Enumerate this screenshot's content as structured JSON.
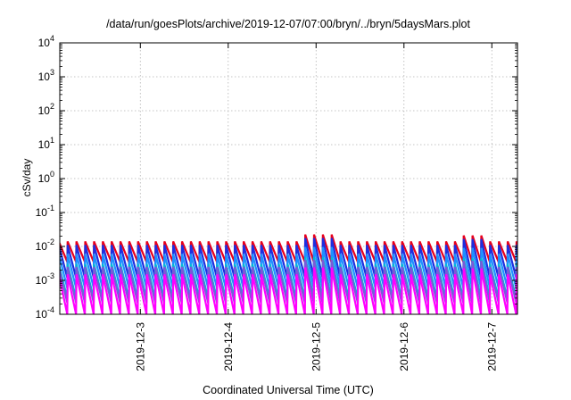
{
  "chart_data": {
    "type": "line",
    "title": "/data/run/goesPlots/archive/2019-12-07/07:00/bryn/../bryn/5daysMars.plot",
    "xlabel": "Coordinated Universal Time (UTC)",
    "ylabel": "cSv/day",
    "x_scale": "time",
    "y_scale": "log",
    "xlim": [
      "2019-12-02T02:00",
      "2019-12-07T07:00"
    ],
    "ylim": [
      0.0001,
      10000
    ],
    "x_ticks": [
      "2019-12-3",
      "2019-12-4",
      "2019-12-5",
      "2019-12-6",
      "2019-12-7"
    ],
    "y_ticks": [
      {
        "mantissa": "10",
        "exp": "-4"
      },
      {
        "mantissa": "10",
        "exp": "-3"
      },
      {
        "mantissa": "10",
        "exp": "-2"
      },
      {
        "mantissa": "10",
        "exp": "-1"
      },
      {
        "mantissa": "10",
        "exp": "0"
      },
      {
        "mantissa": "10",
        "exp": "1"
      },
      {
        "mantissa": "10",
        "exp": "2"
      },
      {
        "mantissa": "10",
        "exp": "3"
      },
      {
        "mantissa": "10",
        "exp": "4"
      }
    ],
    "grid": true,
    "pattern": "sawtooth, about 52 sharp rises followed by decay",
    "series": [
      {
        "color": "#e8001c",
        "peak": 0.014,
        "trough": 0.0035
      },
      {
        "color": "#1d2fe0",
        "peak": 0.011,
        "trough": 0.0012
      },
      {
        "color": "#1e90ff",
        "peak": 0.006,
        "trough": 0.0006
      },
      {
        "color": "#00bcd4",
        "peak": 0.003,
        "trough": 0.0003
      },
      {
        "color": "#7a5ad8",
        "peak": 0.0025,
        "trough": 0.00022
      },
      {
        "color": "#ff00ff",
        "peak": 0.0015,
        "trough": 0.0001
      }
    ]
  }
}
